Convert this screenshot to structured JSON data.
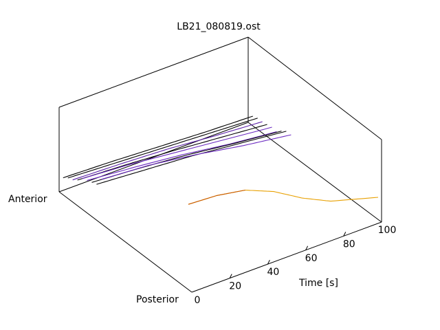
{
  "chart_data": {
    "type": "line",
    "view": "3d-waterfall",
    "title": "LB21_080819.ost",
    "xlabel": "Time [s]",
    "xlim": [
      0,
      100
    ],
    "xticks": [
      0,
      20,
      40,
      60,
      80,
      100
    ],
    "depth_axis": {
      "front_label": "Posterior",
      "back_label": "Anterior"
    },
    "series": [
      {
        "color": "#000000",
        "x": [
          0,
          25,
          50,
          75,
          100
        ],
        "y": [
          0.2,
          0.18,
          0.15,
          0.12,
          0.1
        ]
      },
      {
        "color": "#000000",
        "x": [
          0,
          25,
          50,
          75,
          100
        ],
        "y": [
          0.24,
          0.21,
          0.18,
          0.15,
          0.12
        ]
      },
      {
        "color": "#5a1fa8",
        "x": [
          0,
          25,
          50,
          75,
          100
        ],
        "y": [
          0.26,
          0.24,
          0.21,
          0.16,
          0.12
        ]
      },
      {
        "color": "#000000",
        "x": [
          0,
          25,
          50,
          75,
          100
        ],
        "y": [
          0.3,
          0.27,
          0.23,
          0.18,
          0.13
        ]
      },
      {
        "color": "#6a28c0",
        "x": [
          0,
          25,
          50,
          75,
          100
        ],
        "y": [
          0.36,
          0.32,
          0.26,
          0.2,
          0.14
        ]
      },
      {
        "color": "#6a28c0",
        "x": [
          0,
          25,
          50,
          75,
          100
        ],
        "y": [
          0.38,
          0.33,
          0.27,
          0.19,
          0.13
        ]
      },
      {
        "color": "#000000",
        "x": [
          0,
          25,
          50,
          75,
          100
        ],
        "y": [
          0.4,
          0.36,
          0.31,
          0.24,
          0.18
        ]
      },
      {
        "color": "#000000",
        "x": [
          0,
          25,
          50,
          75,
          100
        ],
        "y": [
          0.42,
          0.38,
          0.34,
          0.28,
          0.22
        ]
      },
      {
        "color": "#6a28c0",
        "x": [
          0,
          25,
          50,
          75,
          100
        ],
        "y": [
          0.52,
          0.48,
          0.4,
          0.3,
          0.22
        ]
      },
      {
        "color": "#e8a000",
        "x": [
          0,
          15,
          30,
          45,
          60,
          75,
          100
        ],
        "y": [
          1.0,
          0.98,
          0.92,
          0.78,
          0.58,
          0.42,
          0.26
        ]
      }
    ]
  }
}
